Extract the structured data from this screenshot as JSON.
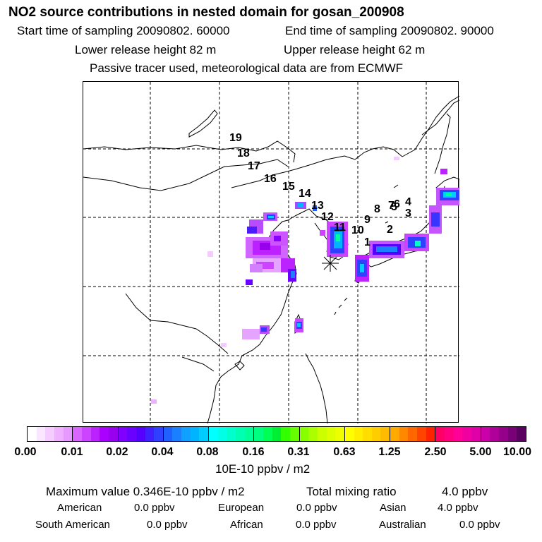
{
  "title": "NO2 source contributions in nested domain for gosan_200908",
  "header": {
    "start_time": "Start time of sampling 20090802. 60000",
    "end_time": "End time of sampling 20090802. 90000",
    "lower_release": "Lower release height   82 m",
    "upper_release": "Upper release height   62 m",
    "note": "Passive tracer used, meteorological data are from ECMWF"
  },
  "map": {
    "trajectory_labels": [
      "1",
      "2",
      "3",
      "4",
      "5",
      "6",
      "7",
      "8",
      "9",
      "10",
      "11",
      "12",
      "13",
      "14",
      "15",
      "16",
      "17",
      "18",
      "19"
    ],
    "receptor_marker": "asterisk-icon"
  },
  "colorbar": {
    "tick_labels": [
      "0.00",
      "0.01",
      "0.02",
      "0.04",
      "0.08",
      "0.16",
      "0.31",
      "0.63",
      "1.25",
      "2.50",
      "5.00",
      "10.00"
    ],
    "units": "10E-10 ppbv / m2",
    "colors": [
      [
        "#ffffff",
        "#fbe6ff",
        "#f5ccff",
        "#eeb0ff",
        "#e699ff"
      ],
      [
        "#d966ff",
        "#cc44ff",
        "#bb22ff",
        "#aa00ff",
        "#9900ee"
      ],
      [
        "#7f00ff",
        "#6a00ff",
        "#5500ff",
        "#4020ff",
        "#3040ff"
      ],
      [
        "#2060ff",
        "#1a80ff",
        "#10a0ff",
        "#00b4ff",
        "#00ccff"
      ],
      [
        "#00ffff",
        "#00ffe6",
        "#00ffcc",
        "#00ffb3",
        "#00ff99"
      ],
      [
        "#00ff80",
        "#00ff55",
        "#00ee33",
        "#33ff00",
        "#66ff00"
      ],
      [
        "#88ff00",
        "#aaff00",
        "#ccff00",
        "#ddff00",
        "#eeff00"
      ],
      [
        "#ffff00",
        "#ffee00",
        "#ffdd00",
        "#ffcc00",
        "#ffbb00"
      ],
      [
        "#ffaa00",
        "#ff8800",
        "#ff6600",
        "#ff4400",
        "#ff2200"
      ],
      [
        "#ff0066",
        "#ff0080",
        "#ff0099",
        "#f000a0",
        "#e000a8"
      ],
      [
        "#cc00aa",
        "#b0009a",
        "#95008a",
        "#7a0078",
        "#5a0060"
      ]
    ]
  },
  "footer": {
    "max_value": "Maximum value  0.346E-10 ppbv / m2",
    "total_mixing_label": "Total mixing ratio",
    "total_mixing_value": "4.0 ppbv",
    "regions": [
      {
        "name": "American",
        "value": "0.0 ppbv"
      },
      {
        "name": "European",
        "value": "0.0 ppbv"
      },
      {
        "name": "Asian",
        "value": "4.0 ppbv"
      },
      {
        "name": "South American",
        "value": "0.0 ppbv"
      },
      {
        "name": "African",
        "value": "0.0 ppbv"
      },
      {
        "name": "Australian",
        "value": "0.0 ppbv"
      }
    ]
  }
}
